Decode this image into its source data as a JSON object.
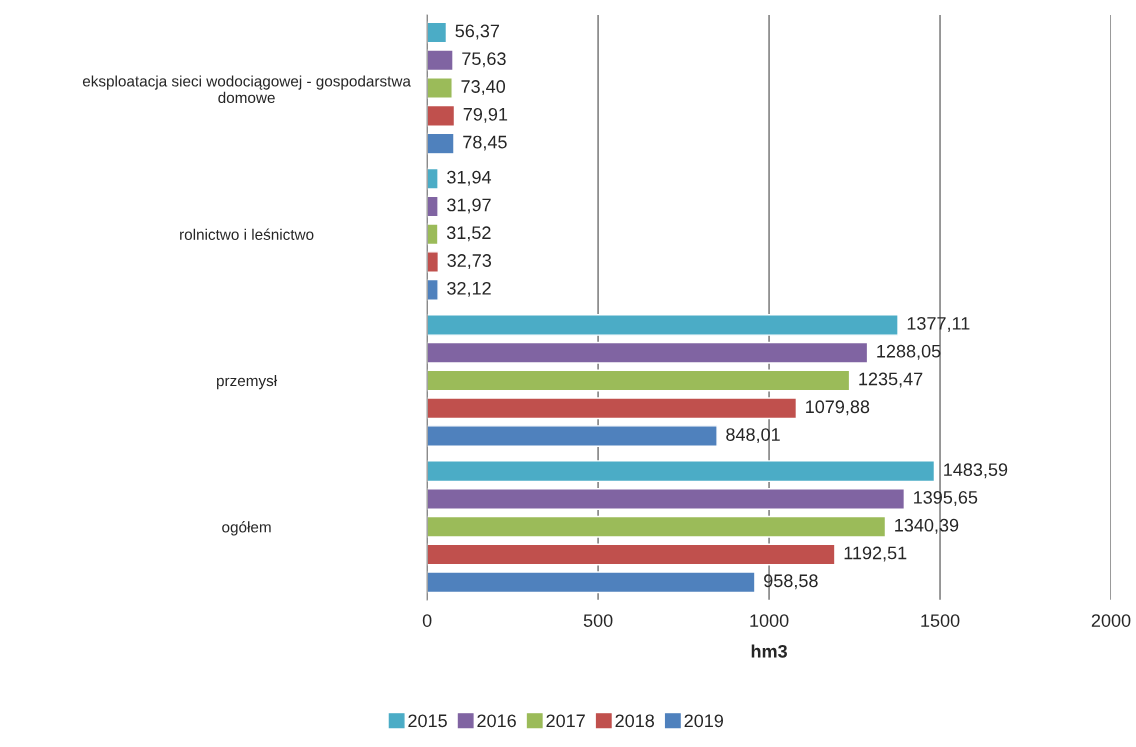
{
  "chart_data": {
    "type": "bar",
    "orientation": "horizontal",
    "xlabel": "hm3",
    "categories": [
      "eksploatacja sieci wodociągowej - gospodarstwa domowe",
      "rolnictwo i leśnictwo",
      "przemysł",
      "ogółem"
    ],
    "series": [
      {
        "name": "2015",
        "color": "#4bacc6",
        "values": [
          56.37,
          31.94,
          1377.11,
          1483.59
        ],
        "value_labels": [
          "56,37",
          "31,94",
          "1377,11",
          "1483,59"
        ]
      },
      {
        "name": "2016",
        "color": "#8064a2",
        "values": [
          75.63,
          31.97,
          1288.05,
          1395.65
        ],
        "value_labels": [
          "75,63",
          "31,97",
          "1288,05",
          "1395,65"
        ]
      },
      {
        "name": "2017",
        "color": "#9bbb59",
        "values": [
          73.4,
          31.52,
          1235.47,
          1340.39
        ],
        "value_labels": [
          "73,40",
          "31,52",
          "1235,47",
          "1340,39"
        ]
      },
      {
        "name": "2018",
        "color": "#c0504d",
        "values": [
          79.91,
          32.73,
          1079.88,
          1192.51
        ],
        "value_labels": [
          "79,91",
          "32,73",
          "1079,88",
          "1192,51"
        ]
      },
      {
        "name": "2019",
        "color": "#4f81bd",
        "values": [
          78.45,
          32.12,
          848.01,
          958.58
        ],
        "value_labels": [
          "78,45",
          "32,12",
          "848,01",
          "958,58"
        ]
      }
    ],
    "xlim": [
      0,
      2000
    ],
    "xticks": [
      0,
      500,
      1000,
      1500,
      2000
    ],
    "grid": "x",
    "legend": "bottom"
  }
}
